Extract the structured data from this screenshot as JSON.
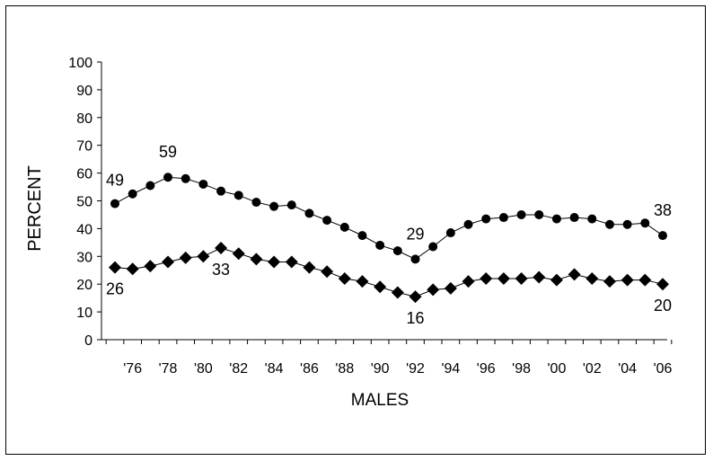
{
  "chart_data": {
    "type": "line",
    "title": "",
    "xlabel": "MALES",
    "ylabel": "PERCENT",
    "ylim": [
      0,
      100
    ],
    "yticks": [
      0,
      10,
      20,
      30,
      40,
      50,
      60,
      70,
      80,
      90,
      100
    ],
    "xlim": [
      1975,
      2006
    ],
    "xtick_labels": [
      "'76",
      "'78",
      "'80",
      "'82",
      "'84",
      "'86",
      "'88",
      "'90",
      "'92",
      "'94",
      "'96",
      "'98",
      "'00",
      "'02",
      "'04",
      "'06"
    ],
    "x": [
      1975,
      1976,
      1977,
      1978,
      1979,
      1980,
      1981,
      1982,
      1983,
      1984,
      1985,
      1986,
      1987,
      1988,
      1989,
      1990,
      1991,
      1992,
      1993,
      1994,
      1995,
      1996,
      1997,
      1998,
      1999,
      2000,
      2001,
      2002,
      2003,
      2004,
      2005,
      2006
    ],
    "series": [
      {
        "marker": "circle",
        "values": [
          49,
          52.5,
          55.5,
          58.5,
          58,
          56,
          53.5,
          52,
          49.5,
          48,
          48.5,
          45.5,
          43,
          40.5,
          37.5,
          34,
          32,
          29,
          33.5,
          38.5,
          41.5,
          43.5,
          44,
          45,
          45,
          43.5,
          44,
          43.5,
          41.5,
          41.5,
          42,
          37.5
        ]
      },
      {
        "marker": "diamond",
        "values": [
          26,
          25.5,
          26.5,
          28,
          29.5,
          30,
          33,
          31,
          29,
          28,
          28,
          26,
          24.5,
          22,
          21,
          19,
          17,
          15.5,
          18,
          18.5,
          21,
          22,
          22,
          22,
          22.5,
          21.5,
          23.5,
          22,
          21,
          21.5,
          21.5,
          20
        ]
      }
    ],
    "annotations": [
      {
        "text": "49",
        "x": 1975,
        "y": 49
      },
      {
        "text": "59",
        "x": 1978,
        "y": 58.5
      },
      {
        "text": "29",
        "x": 1992,
        "y": 29
      },
      {
        "text": "38",
        "x": 2006,
        "y": 37.5
      },
      {
        "text": "26",
        "x": 1975,
        "y": 26
      },
      {
        "text": "33",
        "x": 1981,
        "y": 33
      },
      {
        "text": "16",
        "x": 1992,
        "y": 15.5
      },
      {
        "text": "20",
        "x": 2006,
        "y": 20
      }
    ],
    "grid": false,
    "legend": "none"
  }
}
